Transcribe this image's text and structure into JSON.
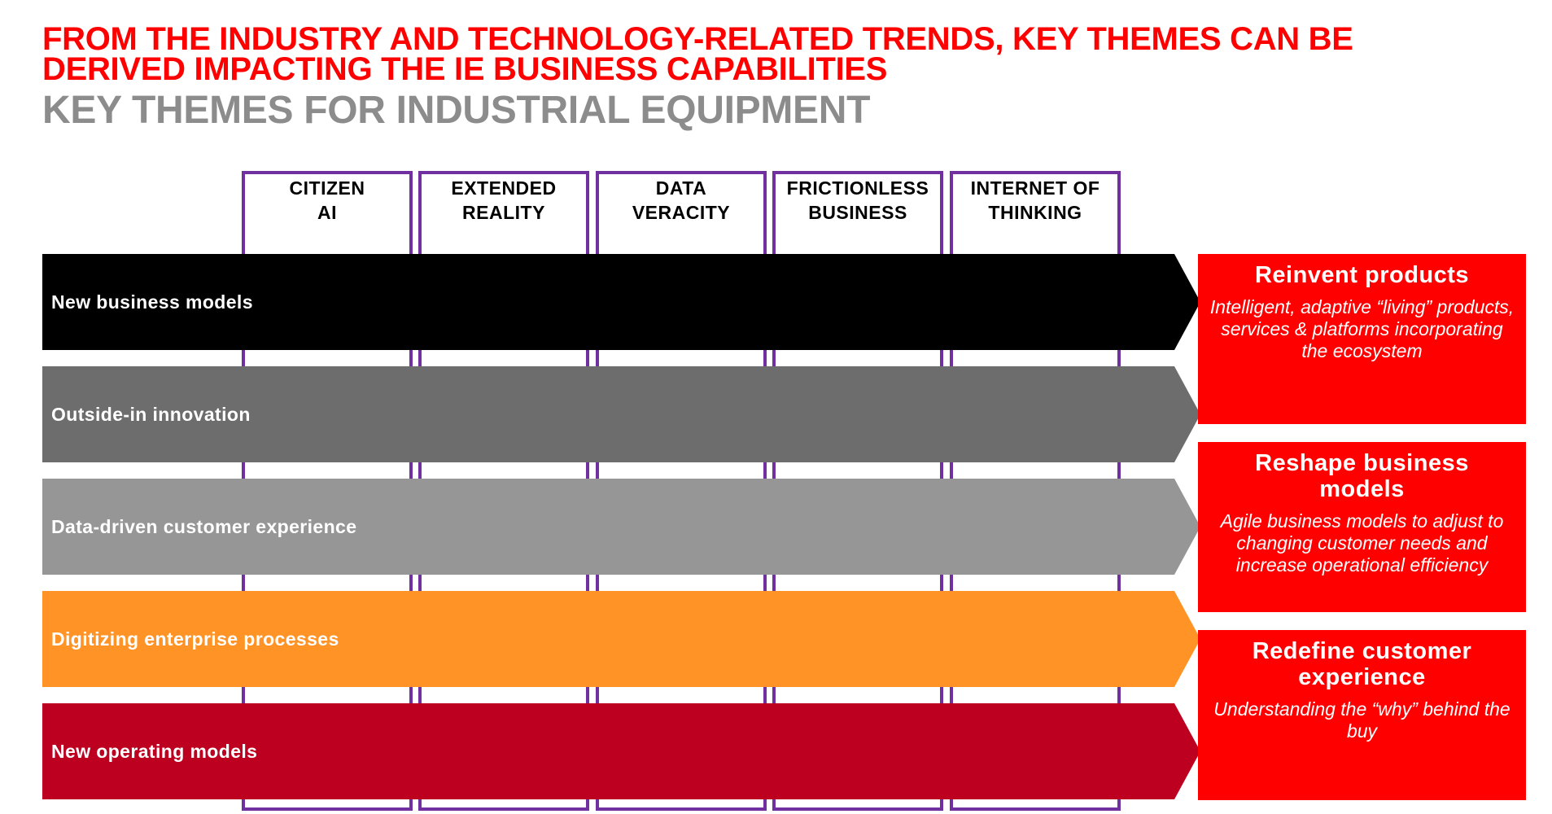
{
  "heading": {
    "line1": "FROM THE INDUSTRY AND TECHNOLOGY-RELATED TRENDS, KEY THEMES CAN BE DERIVED IMPACTING THE IE BUSINESS CAPABILITIES",
    "subtitle": "KEY THEMES FOR INDUSTRIAL EQUIPMENT"
  },
  "columns": [
    {
      "label": "CITIZEN\nAI"
    },
    {
      "label": "EXTENDED\nREALITY"
    },
    {
      "label": "DATA\nVERACITY"
    },
    {
      "label": "FRICTIONLESS\nBUSINESS"
    },
    {
      "label": "INTERNET OF\nTHINKING"
    }
  ],
  "rows": [
    {
      "label": "New business models",
      "color": "#000000"
    },
    {
      "label": "Outside-in innovation",
      "color": "#6d6d6d"
    },
    {
      "label": "Data-driven customer experience",
      "color": "#969696"
    },
    {
      "label": "Digitizing enterprise processes",
      "color": "#ff9326"
    },
    {
      "label": "New operating models",
      "color": "#bd0020"
    }
  ],
  "outcomes": [
    {
      "title": "Reinvent products",
      "description": "Intelligent, adaptive “living” products, services & platforms incorporating the ecosystem"
    },
    {
      "title": "Reshape business models",
      "description": "Agile business models to adjust to changing customer needs and increase operational efficiency"
    },
    {
      "title": "Redefine customer experience",
      "description": "Understanding the “why” behind the buy"
    }
  ],
  "colors": {
    "title_red": "#ff0000",
    "subtitle_gray": "#8c8c8c",
    "column_border": "#7030a0",
    "outcome_box": "#ff0000"
  }
}
